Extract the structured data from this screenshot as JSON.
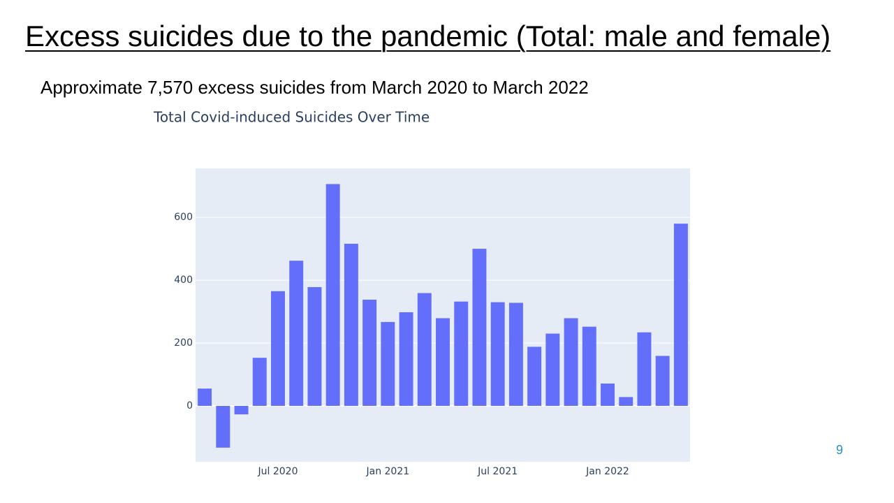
{
  "slide": {
    "title": "Excess suicides due to the pandemic (Total: male and female)",
    "subtitle": "Approximate 7,570 excess suicides from March 2020 to March 2022",
    "page_number": "9"
  },
  "chart_data": {
    "type": "bar",
    "title": "Total Covid-induced Suicides Over Time",
    "x": [
      "2020-03",
      "2020-04",
      "2020-05",
      "2020-06",
      "2020-07",
      "2020-08",
      "2020-09",
      "2020-10",
      "2020-11",
      "2020-12",
      "2021-01",
      "2021-02",
      "2021-03",
      "2021-04",
      "2021-05",
      "2021-06",
      "2021-07",
      "2021-08",
      "2021-09",
      "2021-10",
      "2021-11",
      "2021-12",
      "2022-01",
      "2022-02",
      "2022-03",
      "2022-04",
      "2022-05"
    ],
    "values": [
      55,
      -133,
      -27,
      153,
      365,
      462,
      378,
      706,
      516,
      338,
      267,
      298,
      359,
      279,
      332,
      500,
      330,
      328,
      188,
      230,
      279,
      252,
      71,
      28,
      234,
      159,
      580
    ],
    "color": "#636efa",
    "ylim": [
      -178,
      756
    ],
    "yticks": [
      0,
      200,
      400,
      600
    ],
    "xticks": [
      {
        "value": "2020-07",
        "label": "Jul 2020"
      },
      {
        "value": "2021-01",
        "label": "Jan 2021"
      },
      {
        "value": "2021-07",
        "label": "Jul 2021"
      },
      {
        "value": "2022-01",
        "label": "Jan 2022"
      }
    ],
    "grid": true
  }
}
